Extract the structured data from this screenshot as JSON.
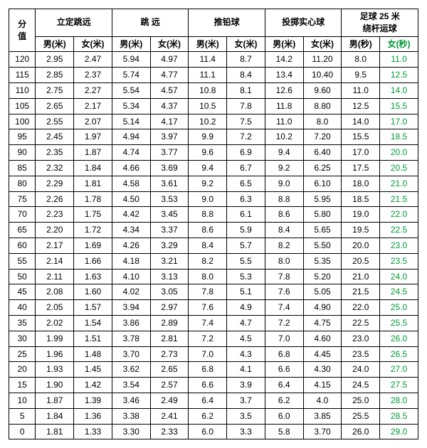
{
  "header": {
    "score": "分值",
    "groups": [
      {
        "label": "立定跳远",
        "sub": [
          "男(米)",
          "女(米)"
        ]
      },
      {
        "label": "跳 远",
        "sub": [
          "男(米)",
          "女(米)"
        ]
      },
      {
        "label": "推铅球",
        "sub": [
          "男(米)",
          "女(米)"
        ]
      },
      {
        "label": "投掷实心球",
        "sub": [
          "男(米)",
          "女(米)"
        ]
      },
      {
        "label": "足球 25 米绕杆运球",
        "sub": [
          "男(秒)",
          "女(秒)"
        ]
      }
    ]
  },
  "last_col_color": "#009933",
  "rows": [
    {
      "s": 120,
      "v": [
        "2.95",
        "2.47",
        "5.94",
        "4.97",
        "11.4",
        "8.7",
        "14.2",
        "11.20",
        "8.0",
        "11.0"
      ]
    },
    {
      "s": 115,
      "v": [
        "2.85",
        "2.37",
        "5.74",
        "4.77",
        "11.1",
        "8.4",
        "13.4",
        "10.40",
        "9.5",
        "12.5"
      ]
    },
    {
      "s": 110,
      "v": [
        "2.75",
        "2.27",
        "5.54",
        "4.57",
        "10.8",
        "8.1",
        "12.6",
        "9.60",
        "11.0",
        "14.0"
      ]
    },
    {
      "s": 105,
      "v": [
        "2.65",
        "2.17",
        "5.34",
        "4.37",
        "10.5",
        "7.8",
        "11.8",
        "8.80",
        "12.5",
        "15.5"
      ]
    },
    {
      "s": 100,
      "v": [
        "2.55",
        "2.07",
        "5.14",
        "4.17",
        "10.2",
        "7.5",
        "11.0",
        "8.0",
        "14.0",
        "17.0"
      ]
    },
    {
      "s": 95,
      "v": [
        "2.45",
        "1.97",
        "4.94",
        "3.97",
        "9.9",
        "7.2",
        "10.2",
        "7.20",
        "15.5",
        "18.5"
      ]
    },
    {
      "s": 90,
      "v": [
        "2.35",
        "1.87",
        "4.74",
        "3.77",
        "9.6",
        "6.9",
        "9.4",
        "6.40",
        "17.0",
        "20.0"
      ]
    },
    {
      "s": 85,
      "v": [
        "2.32",
        "1.84",
        "4.66",
        "3.69",
        "9.4",
        "6.7",
        "9.2",
        "6.25",
        "17.5",
        "20.5"
      ]
    },
    {
      "s": 80,
      "v": [
        "2.29",
        "1.81",
        "4.58",
        "3.61",
        "9.2",
        "6.5",
        "9.0",
        "6.10",
        "18.0",
        "21.0"
      ]
    },
    {
      "s": 75,
      "v": [
        "2.26",
        "1.78",
        "4.50",
        "3.53",
        "9.0",
        "6.3",
        "8.8",
        "5.95",
        "18.5",
        "21.5"
      ]
    },
    {
      "s": 70,
      "v": [
        "2.23",
        "1.75",
        "4.42",
        "3.45",
        "8.8",
        "6.1",
        "8.6",
        "5.80",
        "19.0",
        "22.0"
      ]
    },
    {
      "s": 65,
      "v": [
        "2.20",
        "1.72",
        "4.34",
        "3.37",
        "8.6",
        "5.9",
        "8.4",
        "5.65",
        "19.5",
        "22.5"
      ]
    },
    {
      "s": 60,
      "v": [
        "2.17",
        "1.69",
        "4.26",
        "3.29",
        "8.4",
        "5.7",
        "8.2",
        "5.50",
        "20.0",
        "23.0"
      ]
    },
    {
      "s": 55,
      "v": [
        "2.14",
        "1.66",
        "4.18",
        "3.21",
        "8.2",
        "5.5",
        "8.0",
        "5.35",
        "20.5",
        "23.5"
      ]
    },
    {
      "s": 50,
      "v": [
        "2.11",
        "1.63",
        "4.10",
        "3.13",
        "8.0",
        "5.3",
        "7.8",
        "5.20",
        "21.0",
        "24.0"
      ]
    },
    {
      "s": 45,
      "v": [
        "2.08",
        "1.60",
        "4.02",
        "3.05",
        "7.8",
        "5.1",
        "7.6",
        "5.05",
        "21.5",
        "24.5"
      ]
    },
    {
      "s": 40,
      "v": [
        "2.05",
        "1.57",
        "3.94",
        "2.97",
        "7.6",
        "4.9",
        "7.4",
        "4.90",
        "22.0",
        "25.0"
      ]
    },
    {
      "s": 35,
      "v": [
        "2.02",
        "1.54",
        "3.86",
        "2.89",
        "7.4",
        "4.7",
        "7.2",
        "4.75",
        "22.5",
        "25.5"
      ]
    },
    {
      "s": 30,
      "v": [
        "1.99",
        "1.51",
        "3.78",
        "2.81",
        "7.2",
        "4.5",
        "7.0",
        "4.60",
        "23.0",
        "26.0"
      ]
    },
    {
      "s": 25,
      "v": [
        "1.96",
        "1.48",
        "3.70",
        "2.73",
        "7.0",
        "4.3",
        "6.8",
        "4.45",
        "23.5",
        "26.5"
      ]
    },
    {
      "s": 20,
      "v": [
        "1.93",
        "1.45",
        "3.62",
        "2.65",
        "6.8",
        "4.1",
        "6.6",
        "4.30",
        "24.0",
        "27.0"
      ]
    },
    {
      "s": 15,
      "v": [
        "1.90",
        "1.42",
        "3.54",
        "2.57",
        "6.6",
        "3.9",
        "6.4",
        "4.15",
        "24.5",
        "27.5"
      ]
    },
    {
      "s": 10,
      "v": [
        "1.87",
        "1.39",
        "3.46",
        "2.49",
        "6.4",
        "3.7",
        "6.2",
        "4.0",
        "25.0",
        "28.0"
      ]
    },
    {
      "s": 5,
      "v": [
        "1.84",
        "1.36",
        "3.38",
        "2.41",
        "6.2",
        "3.5",
        "6.0",
        "3.85",
        "25.5",
        "28.5"
      ]
    },
    {
      "s": 0,
      "v": [
        "1.81",
        "1.33",
        "3.30",
        "2.33",
        "6.0",
        "3.3",
        "5.8",
        "3.70",
        "26.0",
        "29.0"
      ]
    }
  ]
}
